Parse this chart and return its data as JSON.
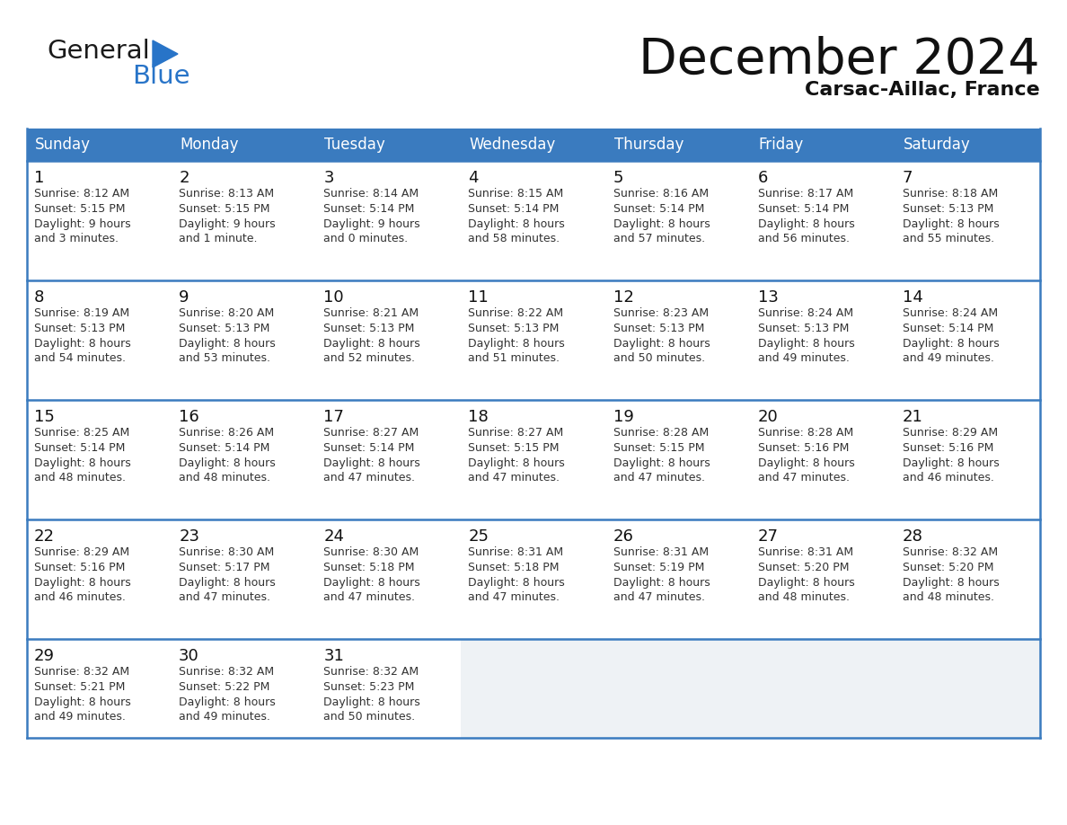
{
  "title": "December 2024",
  "subtitle": "Carsac-Aillac, France",
  "header_bg": "#3a7bbf",
  "header_text": "#ffffff",
  "cell_bg_normal": "#ffffff",
  "cell_bg_empty": "#eef2f5",
  "separator_color": "#3a7bbf",
  "outer_border_color": "#3a7bbf",
  "days_of_week": [
    "Sunday",
    "Monday",
    "Tuesday",
    "Wednesday",
    "Thursday",
    "Friday",
    "Saturday"
  ],
  "weeks": [
    [
      {
        "day": 1,
        "sunrise": "8:12 AM",
        "sunset": "5:15 PM",
        "daylight": "9 hours\nand 3 minutes."
      },
      {
        "day": 2,
        "sunrise": "8:13 AM",
        "sunset": "5:15 PM",
        "daylight": "9 hours\nand 1 minute."
      },
      {
        "day": 3,
        "sunrise": "8:14 AM",
        "sunset": "5:14 PM",
        "daylight": "9 hours\nand 0 minutes."
      },
      {
        "day": 4,
        "sunrise": "8:15 AM",
        "sunset": "5:14 PM",
        "daylight": "8 hours\nand 58 minutes."
      },
      {
        "day": 5,
        "sunrise": "8:16 AM",
        "sunset": "5:14 PM",
        "daylight": "8 hours\nand 57 minutes."
      },
      {
        "day": 6,
        "sunrise": "8:17 AM",
        "sunset": "5:14 PM",
        "daylight": "8 hours\nand 56 minutes."
      },
      {
        "day": 7,
        "sunrise": "8:18 AM",
        "sunset": "5:13 PM",
        "daylight": "8 hours\nand 55 minutes."
      }
    ],
    [
      {
        "day": 8,
        "sunrise": "8:19 AM",
        "sunset": "5:13 PM",
        "daylight": "8 hours\nand 54 minutes."
      },
      {
        "day": 9,
        "sunrise": "8:20 AM",
        "sunset": "5:13 PM",
        "daylight": "8 hours\nand 53 minutes."
      },
      {
        "day": 10,
        "sunrise": "8:21 AM",
        "sunset": "5:13 PM",
        "daylight": "8 hours\nand 52 minutes."
      },
      {
        "day": 11,
        "sunrise": "8:22 AM",
        "sunset": "5:13 PM",
        "daylight": "8 hours\nand 51 minutes."
      },
      {
        "day": 12,
        "sunrise": "8:23 AM",
        "sunset": "5:13 PM",
        "daylight": "8 hours\nand 50 minutes."
      },
      {
        "day": 13,
        "sunrise": "8:24 AM",
        "sunset": "5:13 PM",
        "daylight": "8 hours\nand 49 minutes."
      },
      {
        "day": 14,
        "sunrise": "8:24 AM",
        "sunset": "5:14 PM",
        "daylight": "8 hours\nand 49 minutes."
      }
    ],
    [
      {
        "day": 15,
        "sunrise": "8:25 AM",
        "sunset": "5:14 PM",
        "daylight": "8 hours\nand 48 minutes."
      },
      {
        "day": 16,
        "sunrise": "8:26 AM",
        "sunset": "5:14 PM",
        "daylight": "8 hours\nand 48 minutes."
      },
      {
        "day": 17,
        "sunrise": "8:27 AM",
        "sunset": "5:14 PM",
        "daylight": "8 hours\nand 47 minutes."
      },
      {
        "day": 18,
        "sunrise": "8:27 AM",
        "sunset": "5:15 PM",
        "daylight": "8 hours\nand 47 minutes."
      },
      {
        "day": 19,
        "sunrise": "8:28 AM",
        "sunset": "5:15 PM",
        "daylight": "8 hours\nand 47 minutes."
      },
      {
        "day": 20,
        "sunrise": "8:28 AM",
        "sunset": "5:16 PM",
        "daylight": "8 hours\nand 47 minutes."
      },
      {
        "day": 21,
        "sunrise": "8:29 AM",
        "sunset": "5:16 PM",
        "daylight": "8 hours\nand 46 minutes."
      }
    ],
    [
      {
        "day": 22,
        "sunrise": "8:29 AM",
        "sunset": "5:16 PM",
        "daylight": "8 hours\nand 46 minutes."
      },
      {
        "day": 23,
        "sunrise": "8:30 AM",
        "sunset": "5:17 PM",
        "daylight": "8 hours\nand 47 minutes."
      },
      {
        "day": 24,
        "sunrise": "8:30 AM",
        "sunset": "5:18 PM",
        "daylight": "8 hours\nand 47 minutes."
      },
      {
        "day": 25,
        "sunrise": "8:31 AM",
        "sunset": "5:18 PM",
        "daylight": "8 hours\nand 47 minutes."
      },
      {
        "day": 26,
        "sunrise": "8:31 AM",
        "sunset": "5:19 PM",
        "daylight": "8 hours\nand 47 minutes."
      },
      {
        "day": 27,
        "sunrise": "8:31 AM",
        "sunset": "5:20 PM",
        "daylight": "8 hours\nand 48 minutes."
      },
      {
        "day": 28,
        "sunrise": "8:32 AM",
        "sunset": "5:20 PM",
        "daylight": "8 hours\nand 48 minutes."
      }
    ],
    [
      {
        "day": 29,
        "sunrise": "8:32 AM",
        "sunset": "5:21 PM",
        "daylight": "8 hours\nand 49 minutes."
      },
      {
        "day": 30,
        "sunrise": "8:32 AM",
        "sunset": "5:22 PM",
        "daylight": "8 hours\nand 49 minutes."
      },
      {
        "day": 31,
        "sunrise": "8:32 AM",
        "sunset": "5:23 PM",
        "daylight": "8 hours\nand 50 minutes."
      },
      null,
      null,
      null,
      null
    ]
  ],
  "logo_color_general": "#1a1a1a",
  "logo_color_blue": "#2874c8",
  "logo_triangle_color": "#2874c8",
  "title_fontsize": 40,
  "subtitle_fontsize": 16,
  "header_fontsize": 12,
  "day_num_fontsize": 13,
  "cell_text_fontsize": 9
}
